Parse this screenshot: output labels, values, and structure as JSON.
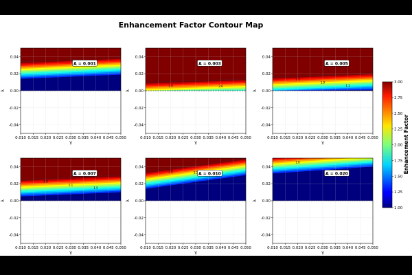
{
  "figure": {
    "title": "Enhancement Factor Contour Map",
    "colorbar": {
      "label": "Enhancement Factor",
      "ticks": [
        "1.00",
        "1.25",
        "1.50",
        "1.75",
        "2.00",
        "2.25",
        "2.50",
        "2.75",
        "3.00"
      ],
      "range": [
        1.0,
        3.0
      ],
      "colormap": "jet"
    }
  },
  "chart_data": [
    {
      "type": "heatmap",
      "annotation": "A = 0.001",
      "xlabel": "γ",
      "ylabel": "λ",
      "xlim": [
        0.01,
        0.05
      ],
      "ylim": [
        -0.05,
        0.05
      ],
      "xticks": [
        "0.010",
        "0.015",
        "0.020",
        "0.025",
        "0.030",
        "0.035",
        "0.040",
        "0.045",
        "0.050"
      ],
      "yticks": [
        "0.04",
        "0.02",
        "0.00",
        "-0.02",
        "-0.04"
      ],
      "boundary_lambda_at_gamma_min": 0.034,
      "boundary_lambda_at_gamma_max": 0.039
    },
    {
      "type": "heatmap",
      "annotation": "A = 0.003",
      "xlabel": "γ",
      "ylabel": "λ",
      "xlim": [
        0.01,
        0.05
      ],
      "ylim": [
        -0.05,
        0.05
      ],
      "xticks": [
        "0.010",
        "0.015",
        "0.020",
        "0.025",
        "0.030",
        "0.035",
        "0.040",
        "0.045",
        "0.050"
      ],
      "yticks": [
        "0.04",
        "0.02",
        "0.00",
        "-0.02",
        "-0.04"
      ],
      "boundary_lambda_at_gamma_min": 0.01,
      "boundary_lambda_at_gamma_max": 0.014,
      "contour_labels": [
        "2.9",
        "2.6"
      ]
    },
    {
      "type": "heatmap",
      "annotation": "A = 0.005",
      "xlabel": "γ",
      "ylabel": "λ",
      "xlim": [
        0.01,
        0.05
      ],
      "ylim": [
        -0.05,
        0.05
      ],
      "xticks": [
        "0.010",
        "0.015",
        "0.020",
        "0.025",
        "0.030",
        "0.035",
        "0.040",
        "0.045",
        "0.050"
      ],
      "yticks": [
        "0.04",
        "0.02",
        "0.00",
        "-0.02",
        "-0.04"
      ],
      "boundary_lambda_at_gamma_min": 0.016,
      "boundary_lambda_at_gamma_max": 0.021,
      "contour_labels": [
        "2.3",
        "1.9",
        "1.1"
      ]
    },
    {
      "type": "heatmap",
      "annotation": "A = 0.007",
      "xlabel": "γ",
      "ylabel": "λ",
      "xlim": [
        0.01,
        0.05
      ],
      "ylim": [
        -0.05,
        0.05
      ],
      "xticks": [
        "0.010",
        "0.015",
        "0.020",
        "0.025",
        "0.030",
        "0.035",
        "0.040",
        "0.045",
        "0.050"
      ],
      "yticks": [
        "0.04",
        "0.02",
        "0.00",
        "-0.02",
        "-0.04"
      ],
      "boundary_lambda_at_gamma_min": 0.025,
      "boundary_lambda_at_gamma_max": 0.03,
      "contour_labels": [
        "2.9",
        "2.1",
        "1.5"
      ]
    },
    {
      "type": "heatmap",
      "annotation": "A = 0.010",
      "xlabel": "γ",
      "ylabel": "λ",
      "xlim": [
        0.01,
        0.05
      ],
      "ylim": [
        -0.05,
        0.05
      ],
      "xticks": [
        "0.010",
        "0.015",
        "0.020",
        "0.025",
        "0.030",
        "0.035",
        "0.040",
        "0.045",
        "0.050"
      ],
      "yticks": [
        "0.04",
        "0.02",
        "0.00",
        "-0.02",
        "-0.04"
      ],
      "boundary_lambda_at_gamma_min": 0.034,
      "boundary_lambda_at_gamma_max": 0.05,
      "contour_labels": [
        "2.8",
        "2.2",
        "1.4"
      ]
    },
    {
      "type": "heatmap",
      "annotation": "A = 0.020",
      "xlabel": "γ",
      "ylabel": "λ",
      "xlim": [
        0.01,
        0.05
      ],
      "ylim": [
        -0.05,
        0.05
      ],
      "xticks": [
        "0.010",
        "0.015",
        "0.020",
        "0.025",
        "0.030",
        "0.035",
        "0.040",
        "0.045",
        "0.050"
      ],
      "yticks": [
        "0.04",
        "0.02",
        "0.00",
        "-0.02",
        "-0.04"
      ],
      "boundary_lambda_at_gamma_min": 0.052,
      "boundary_lambda_at_gamma_max": 0.06,
      "contour_labels": [
        "1.6"
      ]
    }
  ]
}
